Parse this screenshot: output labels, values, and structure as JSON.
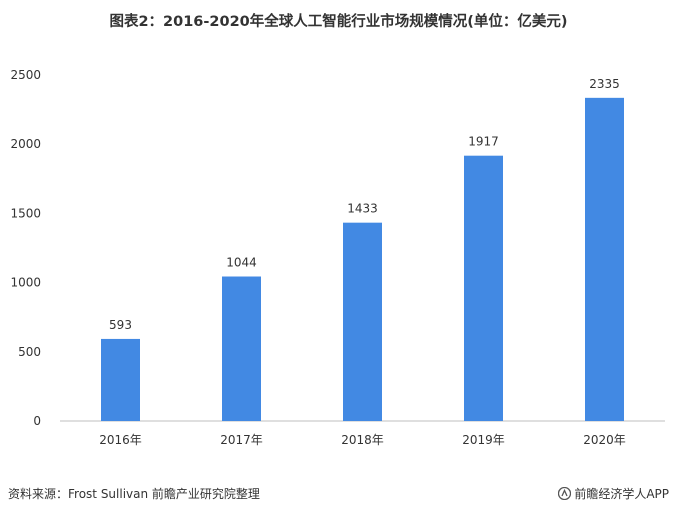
{
  "chart_data": {
    "type": "bar",
    "title": "图表2：2016-2020年全球人工智能行业市场规模情况(单位：亿美元)",
    "categories": [
      "2016年",
      "2017年",
      "2018年",
      "2019年",
      "2020年"
    ],
    "values": [
      593,
      1044,
      1433,
      1917,
      2335
    ],
    "ylim": [
      0,
      2500
    ],
    "yticks": [
      0,
      500,
      1000,
      1500,
      2000,
      2500
    ],
    "xlabel": "",
    "ylabel": "",
    "grid": false,
    "data_labels": true,
    "bar_color": "#4289E3"
  },
  "footer": {
    "source": "资料来源：Frost Sullivan 前瞻产业研究院整理",
    "brand": "前瞻经济学人APP"
  }
}
